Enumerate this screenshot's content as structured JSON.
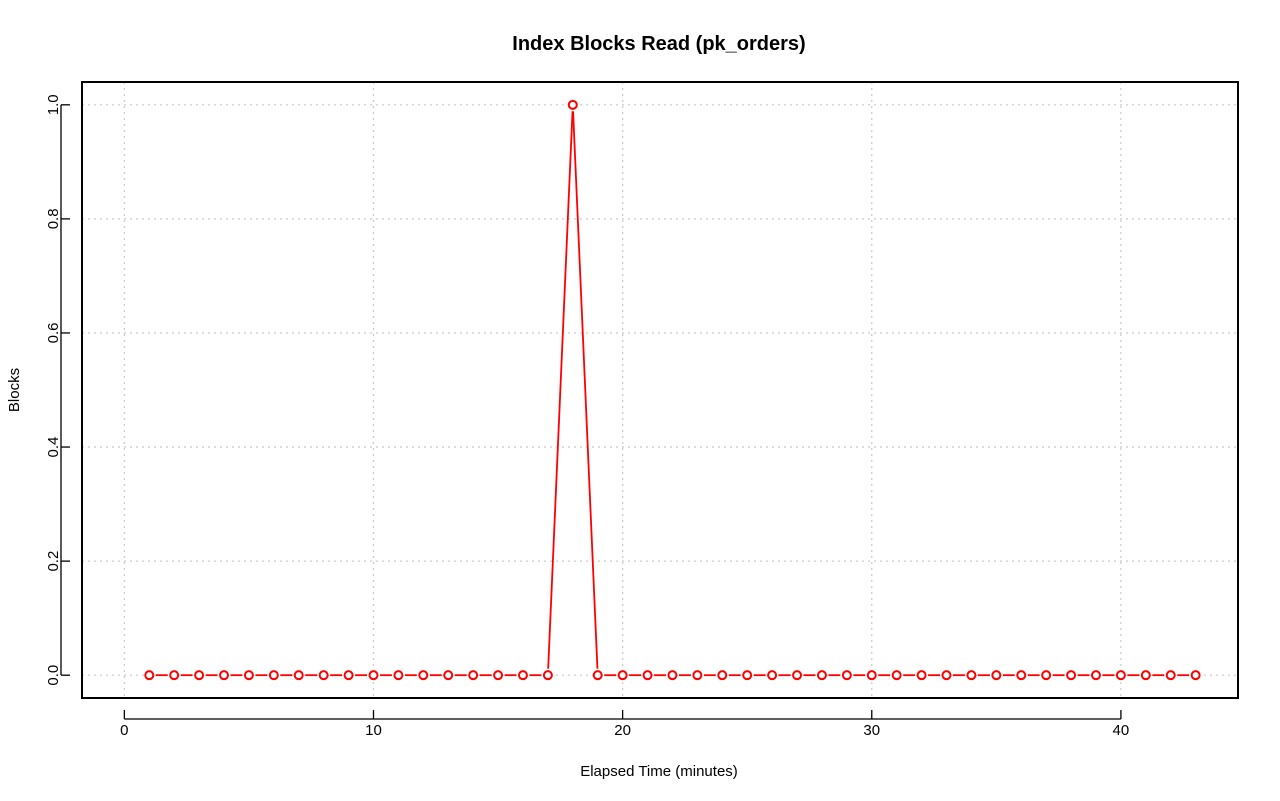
{
  "chart_data": {
    "type": "line",
    "title": "Index Blocks Read (pk_orders)",
    "xlabel": "Elapsed Time (minutes)",
    "ylabel": "Blocks",
    "xlim": [
      -1.7,
      44.7
    ],
    "ylim": [
      -0.04,
      1.04
    ],
    "x_ticks": [
      0,
      10,
      20,
      30,
      40
    ],
    "y_ticks": [
      0.0,
      0.2,
      0.4,
      0.6,
      0.8,
      1.0
    ],
    "x_tick_labels": [
      "0",
      "10",
      "20",
      "30",
      "40"
    ],
    "y_tick_labels": [
      "0.0",
      "0.2",
      "0.4",
      "0.6",
      "0.8",
      "1.0"
    ],
    "grid": true,
    "line_style": "line with open circle markers",
    "series": [
      {
        "color": "#ff0000",
        "x": [
          1,
          2,
          3,
          4,
          5,
          6,
          7,
          8,
          9,
          10,
          11,
          12,
          13,
          14,
          15,
          16,
          17,
          18,
          19,
          20,
          21,
          22,
          23,
          24,
          25,
          26,
          27,
          28,
          29,
          30,
          31,
          32,
          33,
          34,
          35,
          36,
          37,
          38,
          39,
          40,
          41,
          42,
          43
        ],
        "y": [
          0,
          0,
          0,
          0,
          0,
          0,
          0,
          0,
          0,
          0,
          0,
          0,
          0,
          0,
          0,
          0,
          0,
          1,
          0,
          0,
          0,
          0,
          0,
          0,
          0,
          0,
          0,
          0,
          0,
          0,
          0,
          0,
          0,
          0,
          0,
          0,
          0,
          0,
          0,
          0,
          0,
          0,
          0
        ]
      }
    ]
  }
}
